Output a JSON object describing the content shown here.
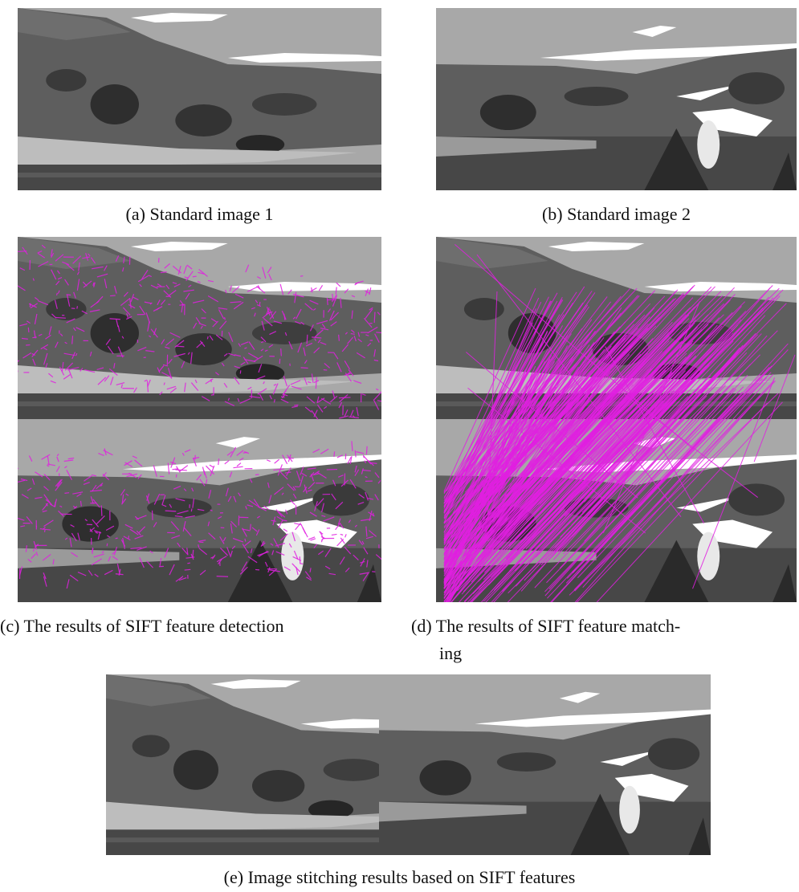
{
  "subfigures": [
    {
      "label": "(a)",
      "caption_lines": [
        "Standard image 1"
      ]
    },
    {
      "label": "(b)",
      "caption_lines": [
        "Standard image 2"
      ]
    },
    {
      "label": "(c)",
      "caption_lines": [
        "The results of SIFT feature detection"
      ]
    },
    {
      "label": "(d)",
      "caption_lines": [
        "The results of SIFT feature match-",
        "ing"
      ]
    },
    {
      "label": "(e)",
      "caption_lines": [
        "Image stitching results based on SIFT features"
      ]
    }
  ]
}
